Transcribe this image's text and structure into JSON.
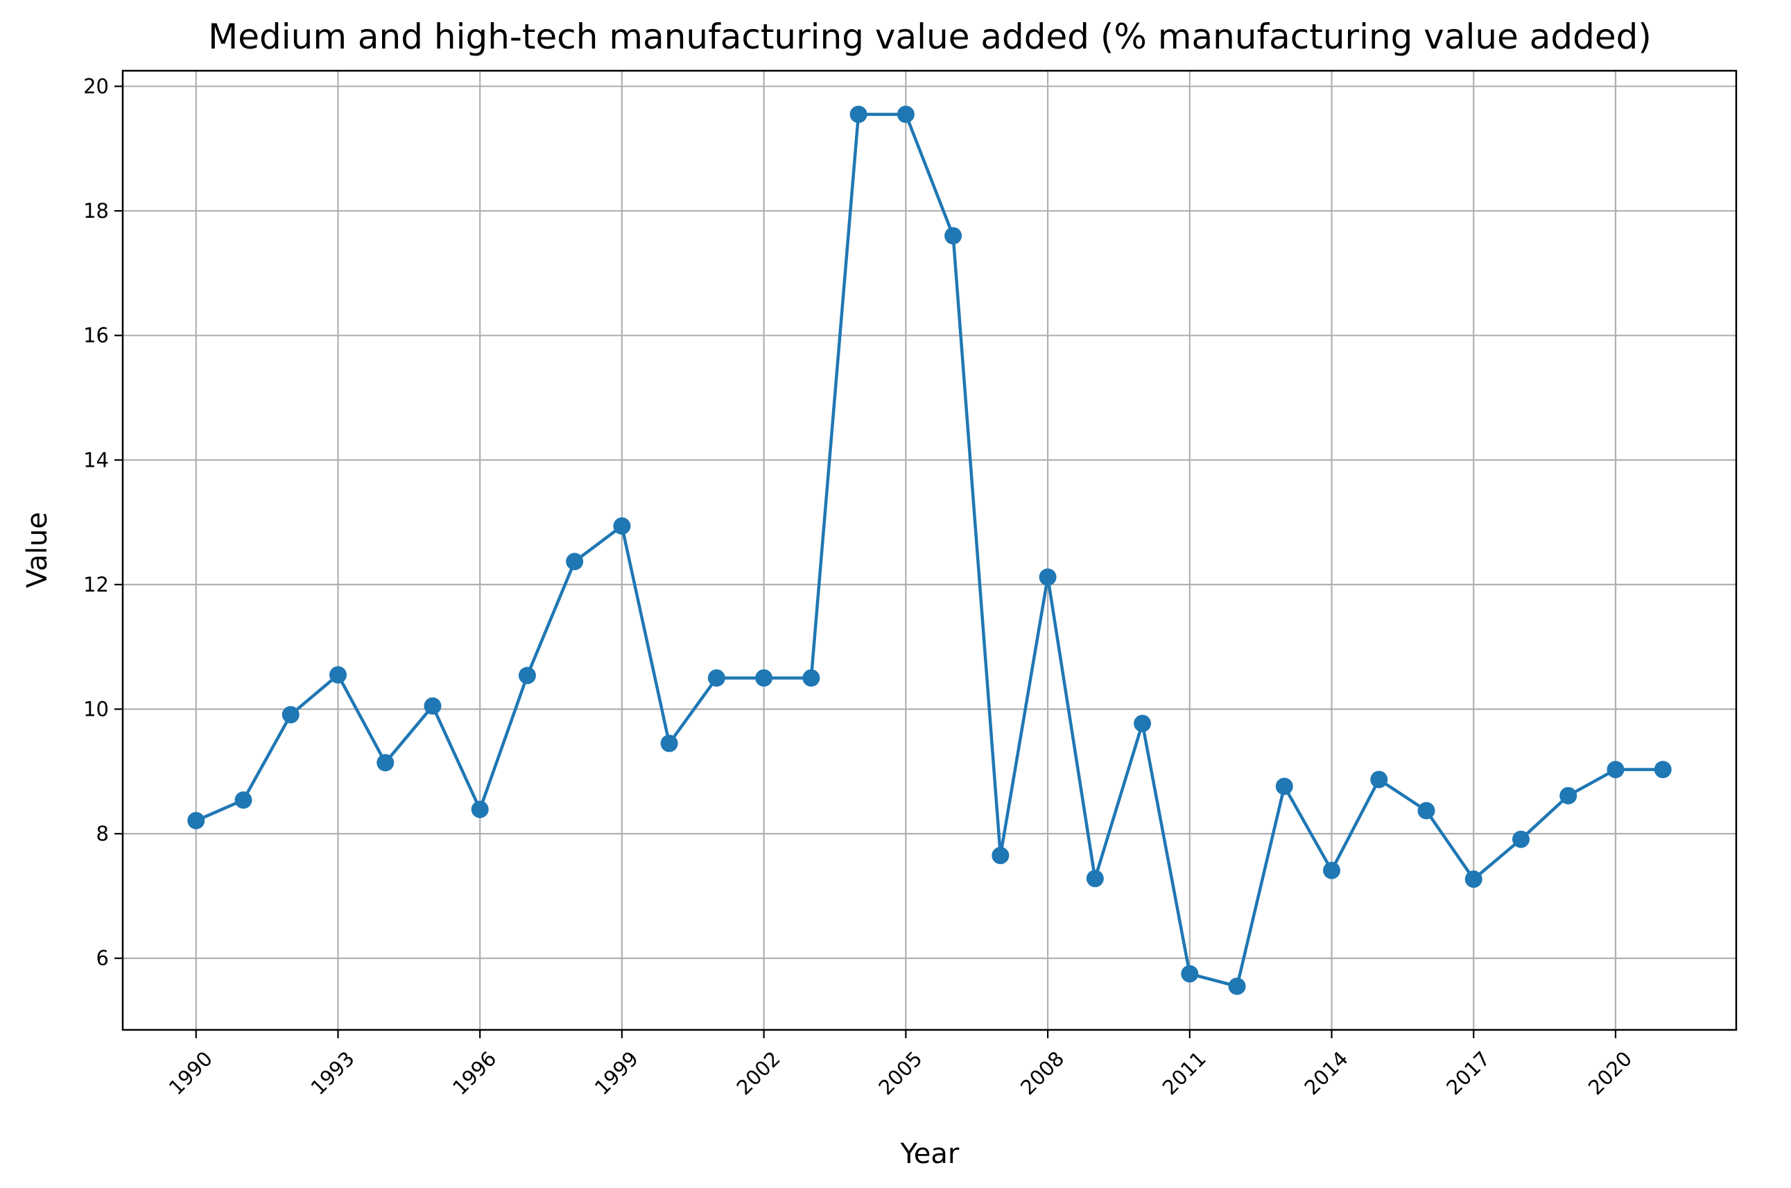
{
  "chart_data": {
    "type": "line",
    "title": "Medium and high-tech manufacturing value added (% manufacturing value added)",
    "xlabel": "Year",
    "ylabel": "Value",
    "x": [
      1990,
      1991,
      1992,
      1993,
      1994,
      1995,
      1996,
      1997,
      1998,
      1999,
      2000,
      2001,
      2002,
      2003,
      2004,
      2005,
      2006,
      2007,
      2008,
      2009,
      2010,
      2011,
      2012,
      2013,
      2014,
      2015,
      2016,
      2017,
      2018,
      2019,
      2020,
      2021
    ],
    "series": [
      {
        "values": [
          8.21,
          8.54,
          9.91,
          10.55,
          9.14,
          10.05,
          8.39,
          10.54,
          12.37,
          12.94,
          9.45,
          10.5,
          10.5,
          10.5,
          19.55,
          19.55,
          17.6,
          7.65,
          12.12,
          7.28,
          9.77,
          5.75,
          5.55,
          8.76,
          7.41,
          8.87,
          8.37,
          7.27,
          7.91,
          8.61,
          9.03,
          9.03
        ],
        "color": "#1f77b4"
      }
    ],
    "xticks": [
      "1990",
      "1993",
      "1996",
      "1999",
      "2002",
      "2005",
      "2008",
      "2011",
      "2014",
      "2017",
      "2020"
    ],
    "yticks": [
      "6",
      "8",
      "10",
      "12",
      "14",
      "16",
      "18",
      "20"
    ],
    "xlim": [
      1988.45,
      2022.55
    ],
    "ylim": [
      4.85,
      20.25
    ],
    "grid": true,
    "marker": "circle"
  }
}
